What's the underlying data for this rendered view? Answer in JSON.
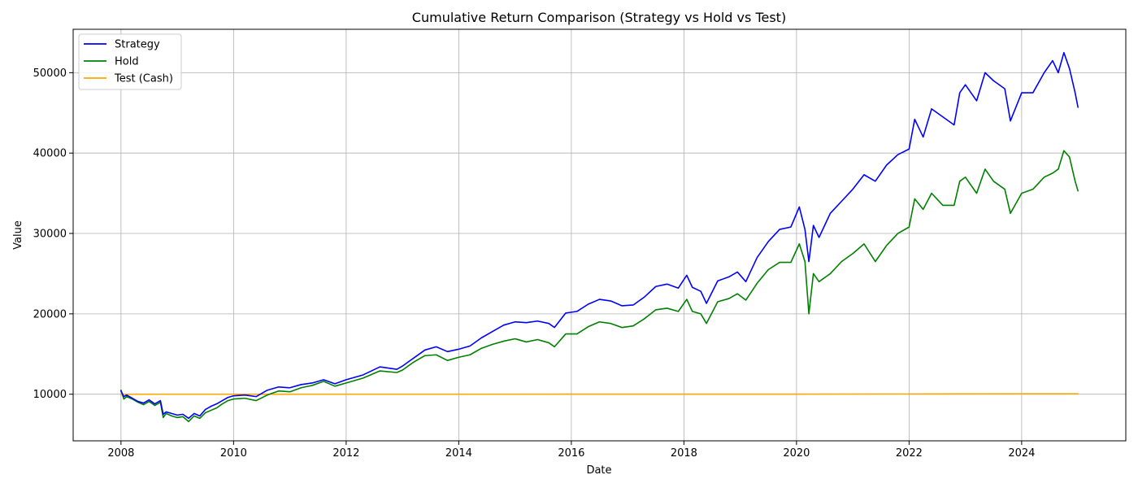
{
  "chart_data": {
    "type": "line",
    "title": "Cumulative Return Comparison (Strategy vs Hold vs Test)",
    "xlabel": "Date",
    "ylabel": "Value",
    "xlim": [
      2007.15,
      2025.85
    ],
    "ylim": [
      4200,
      55400
    ],
    "x_ticks": [
      2008,
      2010,
      2012,
      2014,
      2016,
      2018,
      2020,
      2022,
      2024
    ],
    "x_tick_labels": [
      "2008",
      "2010",
      "2012",
      "2014",
      "2016",
      "2018",
      "2020",
      "2022",
      "2024"
    ],
    "y_ticks": [
      10000,
      20000,
      30000,
      40000,
      50000
    ],
    "y_tick_labels": [
      "10000",
      "20000",
      "30000",
      "40000",
      "50000"
    ],
    "grid": true,
    "legend_position": "top-left",
    "series": [
      {
        "name": "Strategy",
        "color": "#0000ff",
        "x": [
          2008.0,
          2008.05,
          2008.1,
          2008.2,
          2008.3,
          2008.4,
          2008.5,
          2008.6,
          2008.7,
          2008.75,
          2008.8,
          2008.9,
          2009.0,
          2009.1,
          2009.2,
          2009.3,
          2009.4,
          2009.5,
          2009.6,
          2009.7,
          2009.8,
          2009.9,
          2010.0,
          2010.2,
          2010.4,
          2010.6,
          2010.8,
          2011.0,
          2011.2,
          2011.4,
          2011.6,
          2011.8,
          2012.0,
          2012.3,
          2012.6,
          2012.9,
          2013.0,
          2013.2,
          2013.4,
          2013.6,
          2013.8,
          2014.0,
          2014.2,
          2014.4,
          2014.6,
          2014.8,
          2015.0,
          2015.2,
          2015.4,
          2015.6,
          2015.7,
          2015.9,
          2016.1,
          2016.3,
          2016.5,
          2016.7,
          2016.9,
          2017.1,
          2017.3,
          2017.5,
          2017.7,
          2017.9,
          2018.05,
          2018.15,
          2018.3,
          2018.4,
          2018.6,
          2018.8,
          2018.95,
          2019.1,
          2019.3,
          2019.5,
          2019.7,
          2019.9,
          2020.05,
          2020.15,
          2020.22,
          2020.3,
          2020.4,
          2020.6,
          2020.8,
          2021.0,
          2021.2,
          2021.4,
          2021.6,
          2021.8,
          2022.0,
          2022.1,
          2022.25,
          2022.4,
          2022.6,
          2022.8,
          2022.9,
          2023.0,
          2023.2,
          2023.35,
          2023.5,
          2023.7,
          2023.8,
          2024.0,
          2024.2,
          2024.4,
          2024.55,
          2024.65,
          2024.75,
          2024.85,
          2024.95,
          2025.0
        ],
        "y": [
          10400,
          9700,
          9900,
          9500,
          9100,
          8900,
          9300,
          8800,
          9200,
          7500,
          7800,
          7600,
          7400,
          7500,
          7000,
          7600,
          7300,
          8100,
          8500,
          8800,
          9200,
          9600,
          9800,
          9900,
          9700,
          10500,
          10900,
          10800,
          11200,
          11400,
          11800,
          11300,
          11800,
          12400,
          13400,
          13100,
          13500,
          14500,
          15500,
          15900,
          15300,
          15600,
          16000,
          17000,
          17800,
          18600,
          19000,
          18900,
          19100,
          18800,
          18300,
          20100,
          20300,
          21200,
          21800,
          21600,
          21000,
          21100,
          22100,
          23400,
          23700,
          23200,
          24800,
          23300,
          22800,
          21300,
          24100,
          24600,
          25200,
          24000,
          27000,
          29000,
          30500,
          30800,
          33300,
          30500,
          26500,
          31000,
          29500,
          32500,
          34000,
          35500,
          37300,
          36500,
          38500,
          39800,
          40500,
          44200,
          42000,
          45500,
          44500,
          43500,
          47500,
          48500,
          46500,
          50000,
          49000,
          48000,
          44000,
          47500,
          47500,
          50000,
          51500,
          50000,
          52500,
          50500,
          47500,
          45700
        ]
      },
      {
        "name": "Hold",
        "color": "#008000",
        "x": [
          2008.0,
          2008.05,
          2008.1,
          2008.2,
          2008.3,
          2008.4,
          2008.5,
          2008.6,
          2008.7,
          2008.75,
          2008.8,
          2008.9,
          2009.0,
          2009.1,
          2009.2,
          2009.3,
          2009.4,
          2009.5,
          2009.6,
          2009.7,
          2009.8,
          2009.9,
          2010.0,
          2010.2,
          2010.4,
          2010.6,
          2010.8,
          2011.0,
          2011.2,
          2011.4,
          2011.6,
          2011.8,
          2012.0,
          2012.3,
          2012.6,
          2012.9,
          2013.0,
          2013.2,
          2013.4,
          2013.6,
          2013.8,
          2014.0,
          2014.2,
          2014.4,
          2014.6,
          2014.8,
          2015.0,
          2015.2,
          2015.4,
          2015.6,
          2015.7,
          2015.9,
          2016.1,
          2016.3,
          2016.5,
          2016.7,
          2016.9,
          2017.1,
          2017.3,
          2017.5,
          2017.7,
          2017.9,
          2018.05,
          2018.15,
          2018.3,
          2018.4,
          2018.6,
          2018.8,
          2018.95,
          2019.1,
          2019.3,
          2019.5,
          2019.7,
          2019.9,
          2020.05,
          2020.15,
          2020.22,
          2020.3,
          2020.4,
          2020.6,
          2020.8,
          2021.0,
          2021.2,
          2021.4,
          2021.6,
          2021.8,
          2022.0,
          2022.1,
          2022.25,
          2022.4,
          2022.6,
          2022.8,
          2022.9,
          2023.0,
          2023.2,
          2023.35,
          2023.5,
          2023.7,
          2023.8,
          2024.0,
          2024.2,
          2024.4,
          2024.55,
          2024.65,
          2024.75,
          2024.85,
          2024.95,
          2025.0
        ],
        "y": [
          10500,
          9400,
          9700,
          9400,
          9000,
          8700,
          9100,
          8600,
          9000,
          7100,
          7600,
          7300,
          7100,
          7200,
          6600,
          7300,
          7000,
          7700,
          8000,
          8300,
          8800,
          9200,
          9400,
          9500,
          9200,
          9900,
          10400,
          10300,
          10800,
          11100,
          11600,
          11000,
          11400,
          12000,
          12900,
          12700,
          13000,
          14000,
          14800,
          14900,
          14200,
          14600,
          14900,
          15700,
          16200,
          16600,
          16900,
          16500,
          16800,
          16400,
          15900,
          17500,
          17500,
          18400,
          19000,
          18800,
          18300,
          18500,
          19400,
          20500,
          20700,
          20300,
          21800,
          20300,
          20000,
          18800,
          21500,
          21900,
          22500,
          21700,
          23800,
          25500,
          26400,
          26400,
          28700,
          26500,
          20000,
          25000,
          24000,
          25000,
          26500,
          27500,
          28700,
          26500,
          28500,
          30000,
          30800,
          34300,
          33000,
          35000,
          33500,
          33500,
          36500,
          37000,
          35000,
          38000,
          36500,
          35500,
          32500,
          35000,
          35500,
          37000,
          37500,
          38000,
          40300,
          39500,
          36500,
          35300
        ]
      },
      {
        "name": "Test (Cash)",
        "color": "#ffa500",
        "x": [
          2008.0,
          2010.0,
          2012.0,
          2014.0,
          2016.0,
          2018.0,
          2020.0,
          2022.0,
          2024.0,
          2025.0
        ],
        "y": [
          10000,
          10000,
          10000,
          10000,
          10010,
          10010,
          10015,
          10030,
          10050,
          10050
        ]
      }
    ]
  }
}
